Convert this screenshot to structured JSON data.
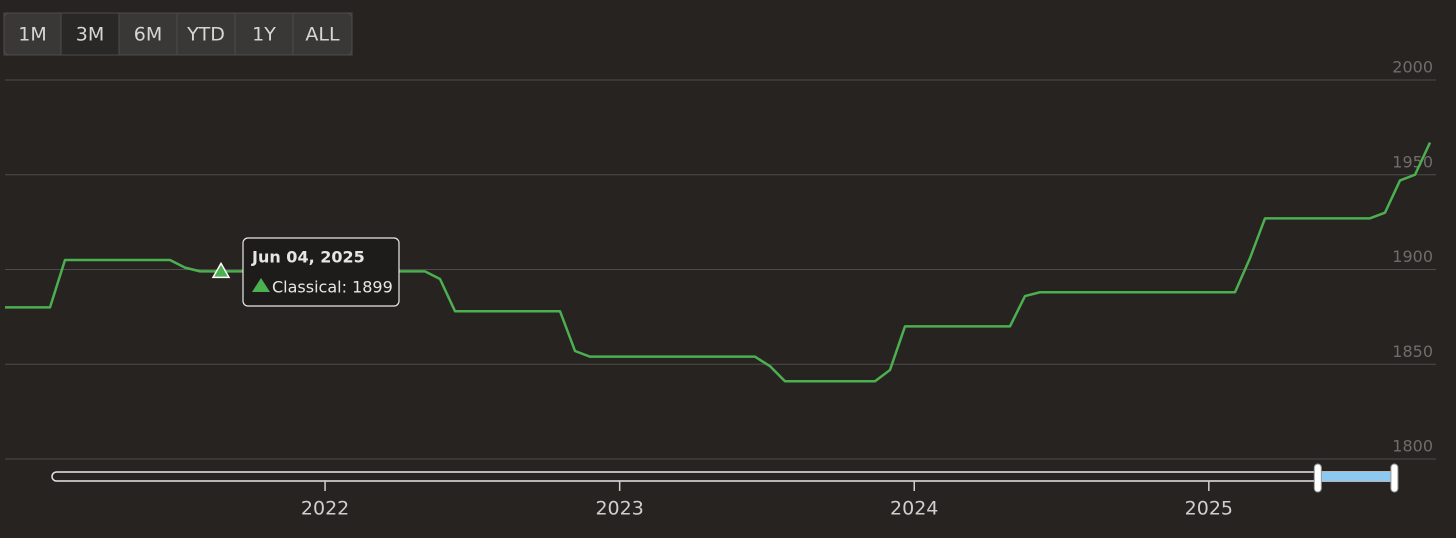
{
  "range_buttons": {
    "labels": [
      "1M",
      "3M",
      "6M",
      "YTD",
      "1Y",
      "ALL"
    ],
    "selected": "3M"
  },
  "chart_data": {
    "type": "line",
    "categories": [
      null,
      null,
      null,
      null,
      null,
      null,
      null,
      null,
      null,
      null,
      null,
      null,
      null,
      null,
      null,
      null,
      null,
      null,
      null,
      null,
      null,
      null,
      null,
      null,
      null,
      null,
      null,
      null,
      null,
      null,
      null,
      null,
      null,
      null,
      null,
      null,
      null,
      null,
      null,
      null,
      null,
      null,
      null,
      null,
      null,
      null,
      null,
      null,
      null,
      null,
      null,
      null,
      null,
      null,
      null,
      null,
      null,
      null,
      null,
      null,
      null,
      null,
      null,
      null,
      null,
      null,
      null,
      null,
      null,
      null,
      null,
      null,
      null,
      null,
      null,
      null,
      null,
      null,
      null,
      null,
      null,
      null,
      null,
      null,
      null,
      null,
      null,
      null,
      null,
      null,
      null,
      null,
      null,
      null,
      null,
      null
    ],
    "series": [
      {
        "name": "Classical",
        "color": "#4caf50",
        "values": [
          1880,
          1880,
          1880,
          1880,
          1905,
          1905,
          1905,
          1905,
          1905,
          1905,
          1905,
          1905,
          1901,
          1899,
          1899,
          1899,
          1899,
          1899,
          1899,
          1899,
          1899,
          1899,
          1899,
          1899,
          1899,
          1899,
          1899,
          1899,
          1899,
          1895,
          1878,
          1878,
          1878,
          1878,
          1878,
          1878,
          1878,
          1878,
          1857,
          1854,
          1854,
          1854,
          1854,
          1854,
          1854,
          1854,
          1854,
          1854,
          1854,
          1854,
          1854,
          1849,
          1841,
          1841,
          1841,
          1841,
          1841,
          1841,
          1841,
          1847,
          1870,
          1870,
          1870,
          1870,
          1870,
          1870,
          1870,
          1870,
          1886,
          1888,
          1888,
          1888,
          1888,
          1888,
          1888,
          1888,
          1888,
          1888,
          1888,
          1888,
          1888,
          1888,
          1888,
          1906,
          1927,
          1927,
          1927,
          1927,
          1927,
          1927,
          1927,
          1927,
          1930,
          1947,
          1950,
          1967
        ]
      }
    ],
    "ylim": [
      1800,
      2000
    ],
    "yticks": [
      1800,
      1850,
      1900,
      1950,
      2000
    ],
    "grid": true,
    "tooltip": {
      "index": 14,
      "title": "Jun 04, 2025",
      "text": "Classical: 1899"
    },
    "navigator": {
      "xlim": [
        2021.073,
        2025.632
      ],
      "xticks": [
        2022,
        2023,
        2024,
        2025
      ],
      "selected_range": [
        2025.37,
        2025.63
      ]
    }
  }
}
